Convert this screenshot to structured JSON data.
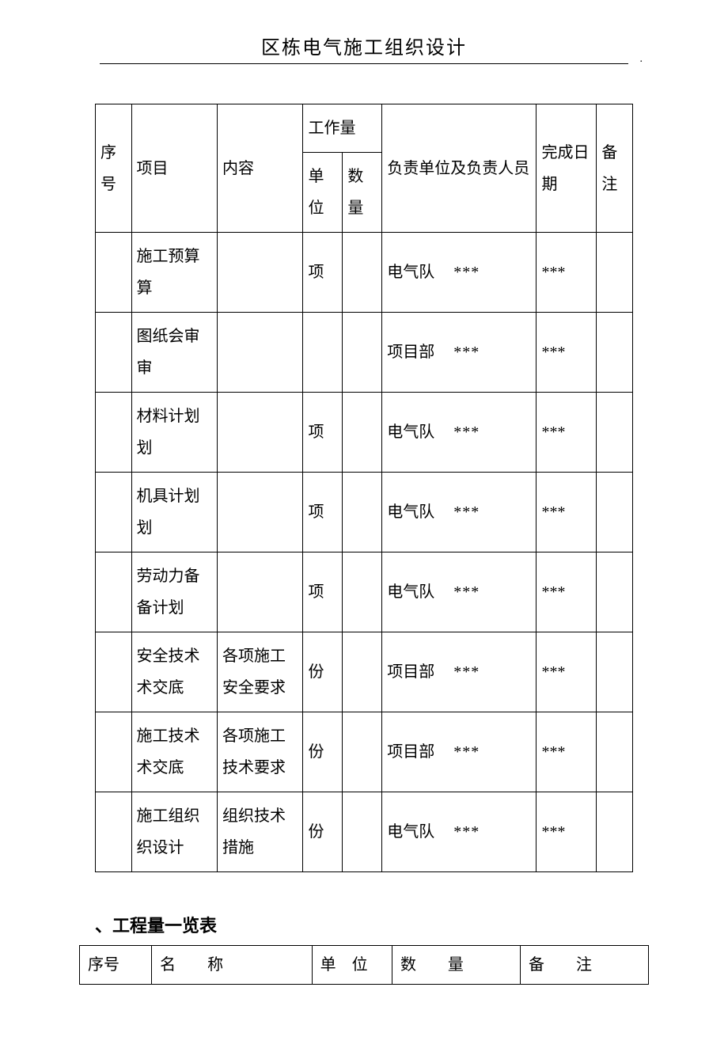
{
  "title": "区栋电气施工组织设计",
  "main_table": {
    "header": {
      "seq": "序号",
      "project": "项目",
      "content": "内容",
      "workload": "工作量",
      "unit": "单位",
      "qty": "数量",
      "responsible": "负责单位及负责人员",
      "date": "完成日期",
      "note": "备注"
    },
    "rows": [
      {
        "seq": "",
        "project": "施工预算算",
        "content": "",
        "unit": "项",
        "qty": "",
        "resp_unit": "电气队",
        "resp_person": "***",
        "date": "***",
        "note": ""
      },
      {
        "seq": "",
        "project": "图纸会审审",
        "content": "",
        "unit": "",
        "qty": "",
        "resp_unit": "项目部",
        "resp_person": "***",
        "date": "***",
        "note": ""
      },
      {
        "seq": "",
        "project": "材料计划划",
        "content": "",
        "unit": "项",
        "qty": "",
        "resp_unit": "电气队",
        "resp_person": "***",
        "date": "***",
        "note": ""
      },
      {
        "seq": "",
        "project": "机具计划划",
        "content": "",
        "unit": "项",
        "qty": "",
        "resp_unit": "电气队",
        "resp_person": "***",
        "date": "***",
        "note": ""
      },
      {
        "seq": "",
        "project": "劳动力备备计划",
        "content": "",
        "unit": "项",
        "qty": "",
        "resp_unit": "电气队",
        "resp_person": "***",
        "date": "***",
        "note": ""
      },
      {
        "seq": "",
        "project": "安全技术术交底",
        "content": "各项施工安全要求",
        "unit": "份",
        "qty": "",
        "resp_unit": "项目部",
        "resp_person": "***",
        "date": "***",
        "note": ""
      },
      {
        "seq": "",
        "project": "施工技术术交底",
        "content": "各项施工技术要求",
        "unit": "份",
        "qty": "",
        "resp_unit": "项目部",
        "resp_person": "***",
        "date": "***",
        "note": ""
      },
      {
        "seq": "",
        "project": "施工组织织设计",
        "content": "组织技术措施",
        "unit": "份",
        "qty": "",
        "resp_unit": "电气队",
        "resp_person": "***",
        "date": "***",
        "note": ""
      }
    ]
  },
  "section_label": "、工程量一览表",
  "sub_table": {
    "header": {
      "seq": "序号",
      "name": "名　　称",
      "unit": "单　位",
      "qty": "数　　量",
      "note": "备　　注"
    }
  },
  "colors": {
    "text": "#000000",
    "background": "#ffffff",
    "border": "#000000"
  }
}
